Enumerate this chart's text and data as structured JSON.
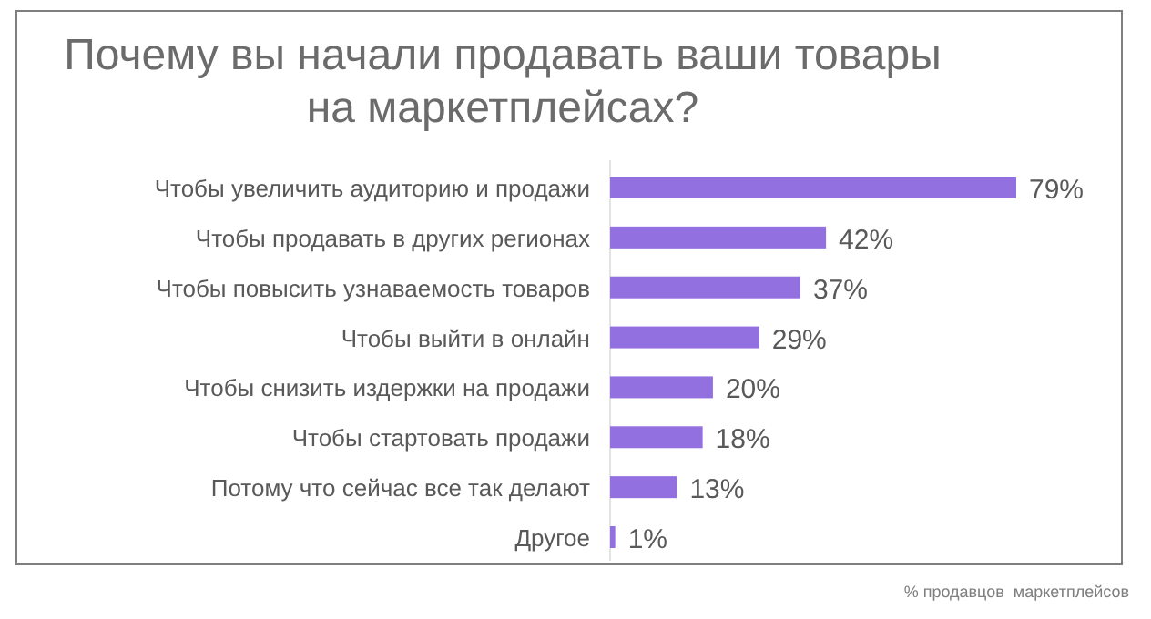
{
  "chart_data": {
    "type": "bar",
    "orientation": "horizontal",
    "title": "Почему вы начали продавать ваши товары\nна маркетплейсах?",
    "categories": [
      "Чтобы увеличить аудиторию и продажи",
      "Чтобы продавать в других регионах",
      "Чтобы повысить узнаваемость товаров",
      "Чтобы выйти в онлайн",
      "Чтобы снизить издержки на продажи",
      "Чтобы стартовать продажи",
      "Потому что сейчас все так делают",
      "Другое"
    ],
    "values": [
      79,
      42,
      37,
      29,
      20,
      18,
      13,
      1
    ],
    "value_labels": [
      "79%",
      "42%",
      "37%",
      "29%",
      "20%",
      "18%",
      "13%",
      "1%"
    ],
    "color": "#9370e0",
    "annotations": [
      "% продавцов  маркетплейсов"
    ]
  }
}
